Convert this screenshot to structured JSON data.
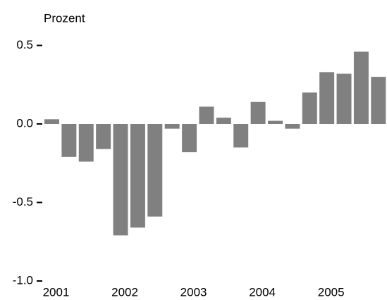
{
  "chart_data": {
    "type": "bar",
    "title": "Prozent",
    "categories": [
      "2001",
      null,
      null,
      null,
      "2002",
      null,
      null,
      null,
      "2003",
      null,
      null,
      null,
      "2004",
      null,
      null,
      null,
      "2005",
      null,
      null,
      null
    ],
    "values": [
      0.03,
      -0.21,
      -0.24,
      -0.16,
      -0.71,
      -0.66,
      -0.59,
      -0.03,
      -0.18,
      0.11,
      0.04,
      -0.15,
      0.14,
      0.02,
      -0.03,
      0.2,
      0.33,
      0.32,
      0.46,
      0.3
    ],
    "color": "#808080",
    "ylim": [
      -1.0,
      0.5
    ],
    "yticks": [
      {
        "value": -1.0,
        "label": "-1.0"
      },
      -0.5,
      {
        "value": 0,
        "label": "0.0"
      },
      0.5
    ],
    "grid": false
  }
}
